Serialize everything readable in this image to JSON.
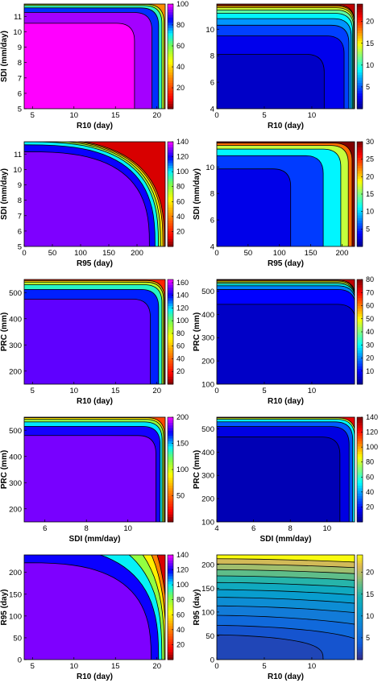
{
  "chart_data": [
    {
      "type": "contour",
      "xlabel": "R10 (day)",
      "ylabel": "SDI (mm/day)",
      "xlim": [
        4,
        21
      ],
      "ylim": [
        5,
        11.8
      ],
      "xticks": [
        5,
        10,
        15,
        20
      ],
      "yticks": [
        5,
        6,
        7,
        8,
        9,
        10,
        11
      ],
      "colorbar": {
        "colormap": "jet_reversed",
        "min": 0,
        "max": 100,
        "ticks": [
          20,
          40,
          60,
          80,
          100
        ]
      },
      "shape": "inverted_corner",
      "contour_levels": [
        {
          "value": 100,
          "ymax": 10.55,
          "xmax": 17.3
        },
        {
          "value": 90,
          "ymax": 11.25,
          "xmax": 19.4
        },
        {
          "value": 75,
          "ymax": 11.55,
          "xmax": 20.2
        },
        {
          "value": 60,
          "ymax": 11.7,
          "xmax": 20.6
        },
        {
          "value": 45,
          "ymax": 11.78,
          "xmax": 20.85
        }
      ]
    },
    {
      "type": "contour",
      "xlabel": "R10 (day)",
      "ylabel": "",
      "xlim": [
        0,
        14.5
      ],
      "ylim": [
        4,
        11.9
      ],
      "xticks": [
        0,
        5,
        10
      ],
      "yticks": [
        4,
        6,
        8,
        10
      ],
      "colorbar": {
        "colormap": "jet",
        "min": 0,
        "max": 24,
        "ticks": [
          5,
          10,
          15,
          20
        ]
      },
      "shape": "inverted_corner",
      "contour_levels": [
        {
          "value": 1.5,
          "ymax": 8.1,
          "xmax": 11.3
        },
        {
          "value": 3.5,
          "ymax": 9.5,
          "xmax": 13.4
        },
        {
          "value": 5.5,
          "ymax": 10.3,
          "xmax": 13.9
        },
        {
          "value": 7.5,
          "ymax": 10.8,
          "xmax": 14.15
        },
        {
          "value": 10,
          "ymax": 11.2,
          "xmax": 14.3
        },
        {
          "value": 12.5,
          "ymax": 11.45,
          "xmax": 14.4
        },
        {
          "value": 15,
          "ymax": 11.62,
          "xmax": 14.45
        },
        {
          "value": 17.5,
          "ymax": 11.74,
          "xmax": 14.5
        },
        {
          "value": 20,
          "ymax": 11.83,
          "xmax": 14.5
        }
      ]
    },
    {
      "type": "contour",
      "xlabel": "R95 (day)",
      "ylabel": "SDI (mm/day)",
      "xlim": [
        0,
        250
      ],
      "ylim": [
        5,
        11.8
      ],
      "xticks": [
        0,
        50,
        100,
        150,
        200
      ],
      "yticks": [
        5,
        6,
        7,
        8,
        9,
        10,
        11
      ],
      "colorbar": {
        "colormap": "jet_reversed",
        "min": 0,
        "max": 140,
        "ticks": [
          20,
          40,
          60,
          80,
          100,
          120,
          140
        ]
      },
      "shape": "rounded_quarter",
      "contour_levels": [
        {
          "value": 130,
          "ymax": 11.15,
          "xmax": 222
        },
        {
          "value": 110,
          "ymax": 11.6,
          "xmax": 232
        },
        {
          "value": 90,
          "ymax": 11.8,
          "xmax": 238
        },
        {
          "value": 70,
          "ymax": 11.9,
          "xmax": 242
        },
        {
          "value": 50,
          "ymax": 11.97,
          "xmax": 246
        },
        {
          "value": 30,
          "ymax": 12.03,
          "xmax": 249
        }
      ]
    },
    {
      "type": "contour",
      "xlabel": "R95 (day)",
      "ylabel": "SDI (mm/day)",
      "xlim": [
        0,
        220
      ],
      "ylim": [
        4,
        11.9
      ],
      "xticks": [
        0,
        50,
        100,
        150,
        200
      ],
      "yticks": [
        4,
        6,
        8,
        10
      ],
      "colorbar": {
        "colormap": "jet",
        "min": 0,
        "max": 30,
        "ticks": [
          5,
          10,
          15,
          20,
          25,
          30
        ]
      },
      "shape": "inverted_corner",
      "contour_levels": [
        {
          "value": 3,
          "ymax": 9.85,
          "xmax": 118
        },
        {
          "value": 8,
          "ymax": 10.85,
          "xmax": 170
        },
        {
          "value": 14,
          "ymax": 11.35,
          "xmax": 198
        },
        {
          "value": 20,
          "ymax": 11.62,
          "xmax": 210
        },
        {
          "value": 26,
          "ymax": 11.8,
          "xmax": 216
        }
      ]
    },
    {
      "type": "contour",
      "xlabel": "R10 (day)",
      "ylabel": "PRC (mm)",
      "xlim": [
        4,
        21
      ],
      "ylim": [
        150,
        550
      ],
      "xticks": [
        5,
        10,
        15,
        20
      ],
      "yticks": [
        200,
        300,
        400,
        500
      ],
      "colorbar": {
        "colormap": "jet_reversed",
        "min": 0,
        "max": 165,
        "ticks": [
          20,
          40,
          60,
          80,
          100,
          120,
          140,
          160
        ]
      },
      "shape": "inverted_corner",
      "contour_levels": [
        {
          "value": 150,
          "ymax": 475,
          "xmax": 19.2
        },
        {
          "value": 125,
          "ymax": 512,
          "xmax": 20.2
        },
        {
          "value": 100,
          "ymax": 530,
          "xmax": 20.6
        },
        {
          "value": 75,
          "ymax": 540,
          "xmax": 20.8
        },
        {
          "value": 50,
          "ymax": 546,
          "xmax": 20.9
        }
      ]
    },
    {
      "type": "contour",
      "xlabel": "R10 (day)",
      "ylabel": "PRC (mm)",
      "xlim": [
        0,
        14.5
      ],
      "ylim": [
        100,
        550
      ],
      "xticks": [
        0,
        5,
        10
      ],
      "yticks": [
        100,
        200,
        300,
        400,
        500
      ],
      "colorbar": {
        "colormap": "jet",
        "min": 0,
        "max": 80,
        "ticks": [
          10,
          20,
          30,
          40,
          50,
          60,
          70,
          80
        ]
      },
      "shape": "inverted_corner",
      "contour_levels": [
        {
          "value": 5,
          "ymax": 443,
          "xmax": 14.6
        },
        {
          "value": 15,
          "ymax": 507,
          "xmax": 14.6
        },
        {
          "value": 25,
          "ymax": 523,
          "xmax": 14.6
        },
        {
          "value": 35,
          "ymax": 532,
          "xmax": 14.6
        },
        {
          "value": 45,
          "ymax": 538,
          "xmax": 14.6
        },
        {
          "value": 55,
          "ymax": 543,
          "xmax": 14.6
        },
        {
          "value": 65,
          "ymax": 547,
          "xmax": 14.6
        }
      ]
    },
    {
      "type": "contour",
      "xlabel": "SDI (mm/day)",
      "ylabel": "PRC (mm)",
      "xlim": [
        5,
        11.8
      ],
      "ylim": [
        150,
        550
      ],
      "xticks": [
        6,
        8,
        10
      ],
      "yticks": [
        200,
        300,
        400,
        500
      ],
      "colorbar": {
        "colormap": "jet_reversed",
        "min": 0,
        "max": 200,
        "ticks": [
          50,
          100,
          150,
          200
        ]
      },
      "shape": "inverted_corner",
      "contour_levels": [
        {
          "value": 185,
          "ymax": 480,
          "xmax": 11.35
        },
        {
          "value": 160,
          "ymax": 515,
          "xmax": 11.55
        },
        {
          "value": 130,
          "ymax": 532,
          "xmax": 11.65
        },
        {
          "value": 100,
          "ymax": 542,
          "xmax": 11.72
        },
        {
          "value": 70,
          "ymax": 548,
          "xmax": 11.77
        }
      ]
    },
    {
      "type": "contour",
      "xlabel": "SDI (mm/day)",
      "ylabel": "PRC (mm)",
      "xlim": [
        4,
        11.5
      ],
      "ylim": [
        100,
        550
      ],
      "xticks": [
        4,
        6,
        8,
        10
      ],
      "yticks": [
        100,
        200,
        300,
        400,
        500
      ],
      "colorbar": {
        "colormap": "jet",
        "min": 0,
        "max": 140,
        "ticks": [
          20,
          40,
          60,
          80,
          100,
          120,
          140
        ]
      },
      "shape": "inverted_corner",
      "contour_levels": [
        {
          "value": 6,
          "ymax": 465,
          "xmax": 10.7
        },
        {
          "value": 20,
          "ymax": 510,
          "xmax": 11.2
        },
        {
          "value": 40,
          "ymax": 530,
          "xmax": 11.4
        },
        {
          "value": 65,
          "ymax": 541,
          "xmax": 11.5
        },
        {
          "value": 95,
          "ymax": 547,
          "xmax": 11.55
        }
      ]
    },
    {
      "type": "contour",
      "xlabel": "R10 (day)",
      "ylabel": "R95 (day)",
      "xlim": [
        4,
        21
      ],
      "ylim": [
        0,
        240
      ],
      "xticks": [
        5,
        10,
        15,
        20
      ],
      "yticks": [
        0,
        50,
        100,
        150,
        200
      ],
      "colorbar": {
        "colormap": "jet_reversed",
        "min": 0,
        "max": 140,
        "ticks": [
          20,
          40,
          60,
          80,
          100,
          120,
          140
        ]
      },
      "shape": "rounded_quarter",
      "contour_levels": [
        {
          "value": 130,
          "ymax": 222,
          "xmax": 19.3
        },
        {
          "value": 110,
          "ymax": 260,
          "xmax": 20.2
        },
        {
          "value": 90,
          "ymax": 300,
          "xmax": 20.6
        },
        {
          "value": 70,
          "ymax": 340,
          "xmax": 20.9
        },
        {
          "value": 50,
          "ymax": 385,
          "xmax": 21.1
        },
        {
          "value": 30,
          "ymax": 430,
          "xmax": 21.3
        }
      ]
    },
    {
      "type": "contour",
      "xlabel": "R10 (day)",
      "ylabel": "R95 (day)",
      "xlim": [
        0,
        14.5
      ],
      "ylim": [
        0,
        220
      ],
      "xticks": [
        0,
        5,
        10
      ],
      "yticks": [
        0,
        50,
        100,
        150,
        200
      ],
      "colorbar": {
        "colormap": "parula",
        "min": 0,
        "max": 24,
        "ticks": [
          5,
          10,
          15,
          20
        ]
      },
      "shape": "bands",
      "contour_levels": [
        {
          "value": 2,
          "ymax": 52,
          "xmax": 11.2
        },
        {
          "value": 4,
          "ymax": 72,
          "xmax": 16.5
        },
        {
          "value": 6,
          "ymax": 93,
          "xmax": 21
        },
        {
          "value": 8,
          "ymax": 113,
          "xmax": 26
        },
        {
          "value": 10,
          "ymax": 131,
          "xmax": 30
        },
        {
          "value": 12,
          "ymax": 147,
          "xmax": 34
        },
        {
          "value": 14,
          "ymax": 162,
          "xmax": 38
        },
        {
          "value": 16,
          "ymax": 176,
          "xmax": 42
        },
        {
          "value": 18,
          "ymax": 189,
          "xmax": 46
        },
        {
          "value": 20,
          "ymax": 201,
          "xmax": 50
        },
        {
          "value": 22,
          "ymax": 212,
          "xmax": 54
        }
      ]
    }
  ]
}
